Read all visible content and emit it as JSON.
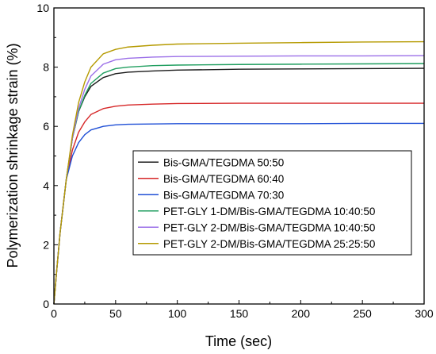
{
  "chart_data": {
    "type": "line",
    "title": "",
    "xlabel": "Time (sec)",
    "ylabel": "Polymerization shrinkage strain (%)",
    "xlim": [
      0,
      300
    ],
    "ylim": [
      0,
      10
    ],
    "xticks": [
      0,
      50,
      100,
      150,
      200,
      250,
      300
    ],
    "yticks": [
      0,
      2,
      4,
      6,
      8,
      10
    ],
    "grid": false,
    "legend_position": "center-right",
    "x": [
      0,
      2,
      5,
      10,
      15,
      20,
      25,
      30,
      40,
      50,
      60,
      80,
      100,
      150,
      200,
      250,
      300
    ],
    "series": [
      {
        "name": "Bis-GMA/TEGDMA 50:50",
        "color": "#1a1a1a",
        "values": [
          0,
          1.0,
          2.4,
          4.2,
          5.6,
          6.5,
          7.0,
          7.35,
          7.65,
          7.78,
          7.83,
          7.87,
          7.9,
          7.93,
          7.94,
          7.95,
          7.96
        ]
      },
      {
        "name": "Bis-GMA/TEGDMA 60:40",
        "color": "#d62728",
        "values": [
          0,
          1.0,
          2.4,
          4.2,
          5.2,
          5.8,
          6.15,
          6.4,
          6.6,
          6.68,
          6.72,
          6.75,
          6.77,
          6.78,
          6.78,
          6.78,
          6.78
        ]
      },
      {
        "name": "Bis-GMA/TEGDMA 70:30",
        "color": "#1f4fd6",
        "values": [
          0,
          1.0,
          2.4,
          4.2,
          5.0,
          5.45,
          5.72,
          5.88,
          6.0,
          6.05,
          6.07,
          6.08,
          6.09,
          6.09,
          6.09,
          6.1,
          6.1
        ]
      },
      {
        "name": "PET-GLY 1-DM/Bis-GMA/TEGDMA 10:40:50",
        "color": "#1f9e5f",
        "values": [
          0,
          1.0,
          2.4,
          4.2,
          5.6,
          6.5,
          7.05,
          7.45,
          7.8,
          7.95,
          8.0,
          8.05,
          8.07,
          8.09,
          8.1,
          8.11,
          8.12
        ]
      },
      {
        "name": "PET-GLY 2-DM/Bis-GMA/TEGDMA 10:40:50",
        "color": "#9b6fe8",
        "values": [
          0,
          1.0,
          2.4,
          4.2,
          5.6,
          6.6,
          7.25,
          7.7,
          8.1,
          8.25,
          8.3,
          8.34,
          8.36,
          8.37,
          8.38,
          8.38,
          8.39
        ]
      },
      {
        "name": "PET-GLY 2-DM/Bis-GMA/TEGDMA 25:25:50",
        "color": "#b59a00",
        "values": [
          0,
          1.0,
          2.4,
          4.2,
          5.7,
          6.8,
          7.5,
          8.0,
          8.45,
          8.6,
          8.68,
          8.74,
          8.78,
          8.81,
          8.83,
          8.85,
          8.86
        ]
      }
    ]
  }
}
